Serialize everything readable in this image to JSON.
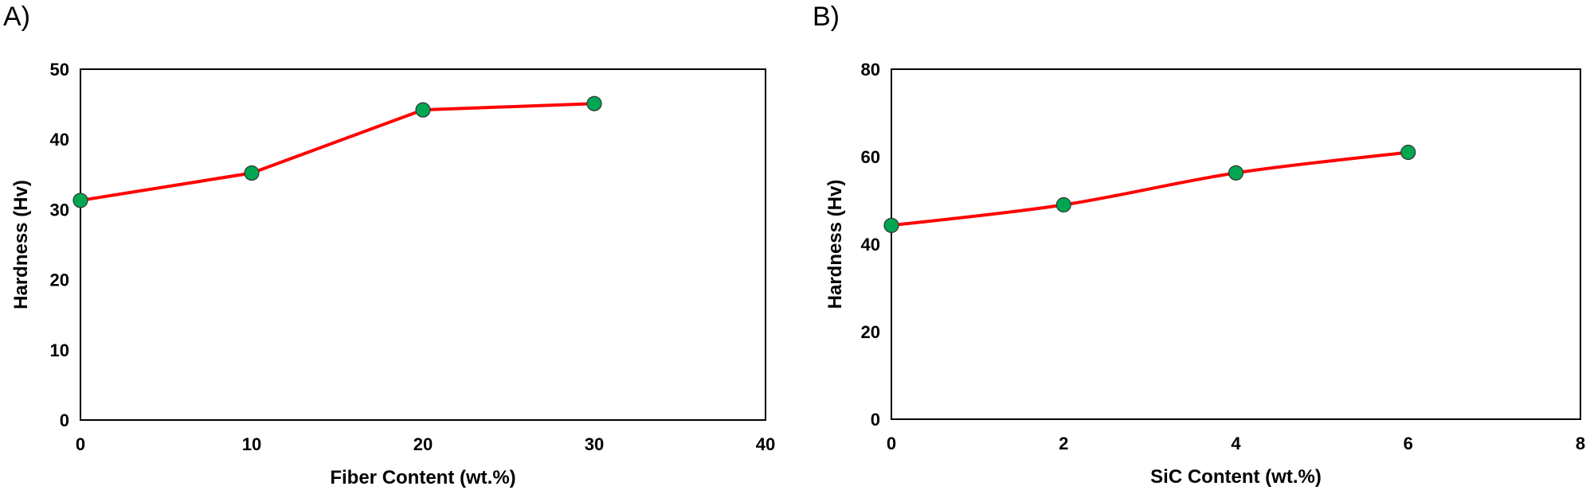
{
  "chart_data": [
    {
      "type": "line",
      "panel_label": "A)",
      "xlabel": "Fiber  Content (wt.%)",
      "ylabel": "Hardness (Hv)",
      "xlim": [
        0,
        40
      ],
      "ylim": [
        0,
        50
      ],
      "xticks": [
        "0",
        "10",
        "20",
        "30",
        "40"
      ],
      "yticks": [
        "0",
        "10",
        "20",
        "30",
        "40",
        "50"
      ],
      "x": [
        0,
        10,
        20,
        30
      ],
      "y": [
        31.3,
        35.2,
        44.2,
        45.1
      ],
      "line_color": "#ff0000",
      "marker_color": "#00a651",
      "smooth": false,
      "grid": false
    },
    {
      "type": "line",
      "panel_label": "B)",
      "xlabel": "SiC  Content (wt.%)",
      "ylabel": "Hardness (Hv)",
      "xlim": [
        0,
        8
      ],
      "ylim": [
        0,
        80
      ],
      "xticks": [
        "0",
        "2",
        "4",
        "6",
        "8"
      ],
      "yticks": [
        "0",
        "20",
        "40",
        "60",
        "80"
      ],
      "x": [
        0,
        2,
        4,
        6
      ],
      "y": [
        44.3,
        49.0,
        56.3,
        61.0
      ],
      "line_color": "#ff0000",
      "marker_color": "#00a651",
      "smooth": true,
      "grid": false
    }
  ]
}
